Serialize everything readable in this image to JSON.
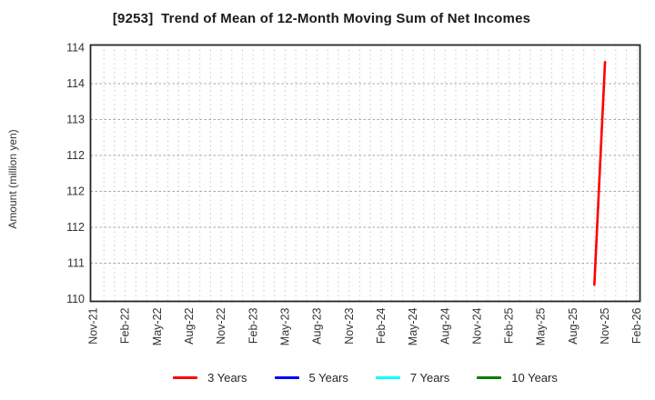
{
  "chart_data": {
    "type": "line",
    "title": "[9253]  Trend of Mean of 12-Month Moving Sum of Net Incomes",
    "ylabel": "Amount (million yen)",
    "xlabel": "",
    "x_tick_labels": [
      "Nov-21",
      "Feb-22",
      "May-22",
      "Aug-22",
      "Nov-22",
      "Feb-23",
      "May-23",
      "Aug-23",
      "Nov-23",
      "Feb-24",
      "May-24",
      "Aug-24",
      "Nov-24",
      "Feb-25",
      "May-25",
      "Aug-25",
      "Nov-25",
      "Feb-26"
    ],
    "x_tick_every_months": 3,
    "x_total_months": 51,
    "ylim": [
      110.5,
      114
    ],
    "y_ticks": [
      {
        "value": 114.0,
        "label": "114"
      },
      {
        "value": 113.5,
        "label": "114"
      },
      {
        "value": 113.0,
        "label": "113"
      },
      {
        "value": 112.5,
        "label": "112"
      },
      {
        "value": 112.0,
        "label": "112"
      },
      {
        "value": 111.5,
        "label": "112"
      },
      {
        "value": 111.0,
        "label": "111"
      },
      {
        "value": 110.5,
        "label": "110"
      }
    ],
    "grid": {
      "vertical": "dotted, every month",
      "horizontal": "dashed, every 0.5"
    },
    "legend_position": "bottom-center",
    "series": [
      {
        "name": "3 Years",
        "color": "#ff0000",
        "points": [
          {
            "month_index": 47,
            "x_label": "Oct-25",
            "value": 110.7
          },
          {
            "month_index": 48,
            "x_label": "Nov-25",
            "value": 113.8
          }
        ]
      },
      {
        "name": "5 Years",
        "color": "#0000ff",
        "points": []
      },
      {
        "name": "7 Years",
        "color": "#00ffff",
        "points": []
      },
      {
        "name": "10 Years",
        "color": "#008000",
        "points": []
      }
    ],
    "colors": {
      "axis_border": "#262626",
      "tick_text": "#333333",
      "grid_vertical": "#c9c9c9",
      "grid_horizontal": "#a6a6a6"
    }
  }
}
